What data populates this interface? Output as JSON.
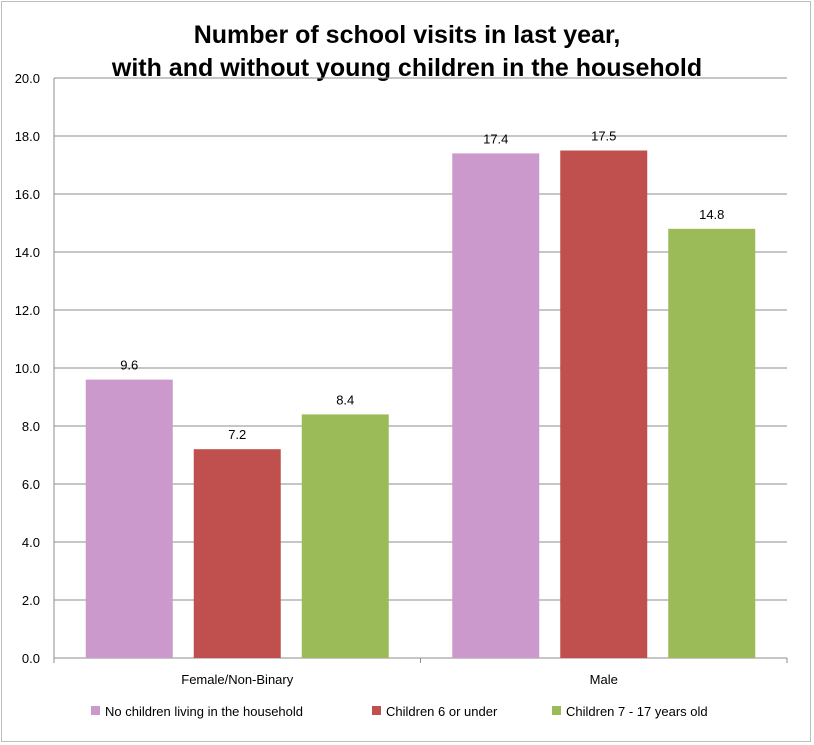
{
  "chart_data": {
    "type": "bar",
    "title": "Number of school visits in last year, with and without young children in the household",
    "title_lines": [
      "Number of school visits in last year,",
      "with and without young children in the household"
    ],
    "xlabel": "",
    "ylabel": "",
    "categories": [
      "Female/Non-Binary",
      "Male"
    ],
    "series": [
      {
        "name": "No children living in the household",
        "color": "#cc99cc",
        "values": [
          9.6,
          17.4
        ],
        "labels": [
          "9.6",
          "17.4"
        ]
      },
      {
        "name": "Children 6 or under",
        "color": "#c0504d",
        "values": [
          7.2,
          17.5
        ],
        "labels": [
          "7.2",
          "17.5"
        ]
      },
      {
        "name": "Children 7 - 17 years old",
        "color": "#9bbb59",
        "values": [
          8.4,
          14.8
        ],
        "labels": [
          "8.4",
          "14.8"
        ]
      }
    ],
    "ylim": [
      0,
      20
    ],
    "yticks": [
      "0.0",
      "2.0",
      "4.0",
      "6.0",
      "8.0",
      "10.0",
      "12.0",
      "14.0",
      "16.0",
      "18.0",
      "20.0"
    ],
    "grid": true,
    "legend_position": "bottom"
  }
}
